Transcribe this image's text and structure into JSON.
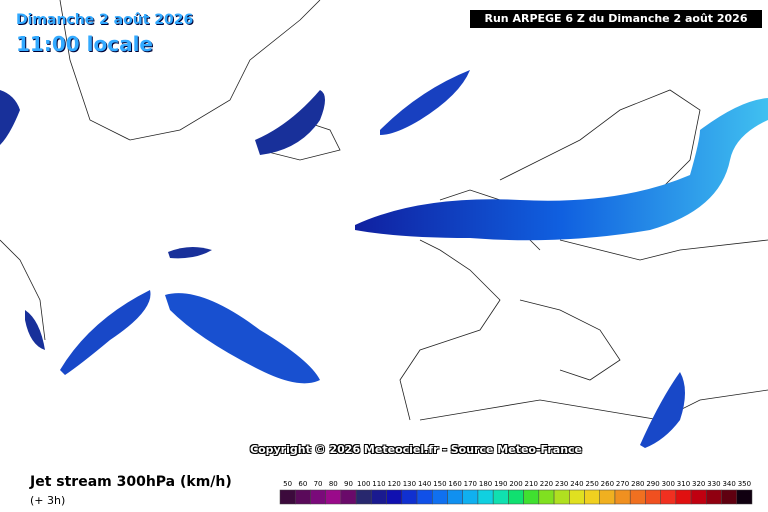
{
  "header": {
    "date": "Dimanche 2 août 2026",
    "time": "11:00 locale",
    "run": "Run ARPEGE 6 Z du Dimanche 2 août 2026"
  },
  "footer": {
    "copyright": "Copyright © 2026 Meteociel.fr - Source Meteo-France",
    "parameter": "Jet stream 300hPa (km/h)",
    "step": "(+ 3h)"
  },
  "legend": {
    "levels": [
      50,
      60,
      70,
      80,
      90,
      100,
      110,
      120,
      130,
      140,
      150,
      160,
      170,
      180,
      190,
      200,
      210,
      220,
      230,
      240,
      250,
      260,
      270,
      280,
      290,
      300,
      310,
      320,
      330,
      340,
      350
    ],
    "colors": [
      "#3c0a3c",
      "#5a0a5a",
      "#7a0a7a",
      "#9a0a8a",
      "#6a0a6a",
      "#28286e",
      "#1a1a90",
      "#1010b0",
      "#1030d0",
      "#1050e8",
      "#1070f0",
      "#1090f0",
      "#10b0f0",
      "#10d0e0",
      "#10e0b0",
      "#10e070",
      "#40e030",
      "#80e020",
      "#b0e020",
      "#e0e020",
      "#f0d020",
      "#f0b020",
      "#f09020",
      "#f07020",
      "#f05020",
      "#f03020",
      "#e01010",
      "#c00010",
      "#900010",
      "#600010",
      "#100010"
    ]
  }
}
